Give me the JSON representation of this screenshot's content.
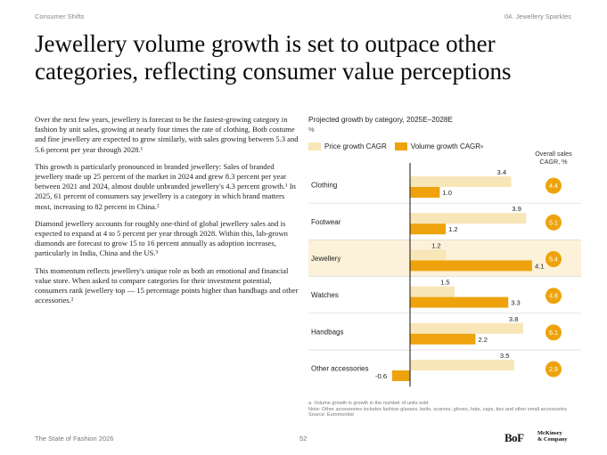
{
  "header": {
    "left": "Consumer Shifts",
    "right": "04. Jewellery Sparkles"
  },
  "title": "Jewellery volume growth is set to outpace other categories, reflecting consumer value perceptions",
  "body": {
    "paragraphs": [
      "Over the next few years, jewellery is forecast to be the fastest-growing category in fashion by unit sales, growing at nearly four times the rate of clothing. Both costume and fine jewellery are expected to grow similarly, with sales growing between 5.3 and 5.6 percent per year through 2028.¹",
      "This growth is particularly pronounced in branded jewellery: Sales of branded jewellery made up 25 percent of the market in 2024 and grew 8.3 percent per year between 2021 and 2024, almost double unbranded jewellery's 4.3 percent growth.¹ In 2025, 61 percent of consumers say jewellery is a category in which brand matters most, increasing to 82 percent in China.²",
      "Diamond jewellery accounts for roughly one-third of global jewellery sales and is expected to expand at 4 to 5 percent per year through 2028. Within this, lab-grown diamonds are forecast to grow 15 to 16 percent annually as adoption increases, particularly in India, China and the US.³",
      "This momentum reflects jewellery's unique role as both an emotional and financial value store. When asked to compare categories for their investment potential, consumers rank jewellery top — 15 percentage points higher than handbags and other accessories.²"
    ]
  },
  "chart_data": {
    "type": "bar",
    "orientation": "horizontal",
    "title": "Projected growth by category, 2025E–2028E",
    "unit": "%",
    "categories": [
      "Clothing",
      "Footwear",
      "Jewellery",
      "Watches",
      "Handbags",
      "Other accessories"
    ],
    "series": [
      {
        "name": "Price growth CAGR",
        "values": [
          3.4,
          3.9,
          1.2,
          1.5,
          3.8,
          3.5
        ],
        "color": "#f8e6b8"
      },
      {
        "name": "Volume growth CAGR",
        "superscript": "a",
        "values": [
          1.0,
          1.2,
          4.1,
          3.3,
          2.2,
          -0.6
        ],
        "color": "#eea30d"
      }
    ],
    "overall_sales": {
      "label": "Overall sales CAGR, %",
      "values": [
        "4.4",
        "5.1",
        "5.4",
        "4.8",
        "6.1",
        "2.9"
      ],
      "color": "#eea30d"
    },
    "highlight_category": "Jewellery",
    "highlight_color": "#fcf2d9",
    "xlim": [
      -0.8,
      4.5
    ]
  },
  "notes": {
    "a": "a. Volume growth is growth in the number of units sold",
    "note": "Note: Other accessories includes fashion glasses, belts, scarves, gloves, hats, caps, ties and other small accessories",
    "source": "Source: Euromonitor"
  },
  "footer": {
    "left": "The State of Fashion 2026",
    "page": "52",
    "logo_bof": "BoF",
    "logo_mck_line1": "McKinsey",
    "logo_mck_line2": "& Company"
  }
}
